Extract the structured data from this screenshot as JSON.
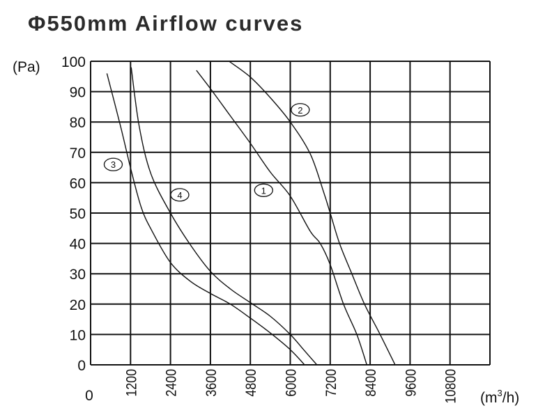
{
  "chart_data": {
    "type": "line",
    "title": "Φ550mm Airflow curves",
    "xlabel": "(m³/h)",
    "xlabel_base": "(m",
    "xlabel_sup": "3",
    "xlabel_tail": "/h)",
    "ylabel": "(Pa)",
    "xlim": [
      0,
      12000
    ],
    "ylim": [
      0,
      100
    ],
    "grid": true,
    "x_ticks": [
      0,
      1200,
      2400,
      3600,
      4800,
      6000,
      7200,
      8400,
      9600,
      10800
    ],
    "x_tick_labels": [
      "0",
      "1200",
      "2400",
      "3600",
      "4800",
      "6000",
      "7200",
      "8400",
      "9600",
      "10800"
    ],
    "y_ticks": [
      0,
      10,
      20,
      30,
      40,
      50,
      60,
      70,
      80,
      90,
      100
    ],
    "y_tick_labels": [
      "0",
      "10",
      "20",
      "30",
      "40",
      "50",
      "60",
      "70",
      "80",
      "90",
      "100"
    ],
    "line_color": "#111111",
    "series": [
      {
        "name": "1",
        "label_at": [
          5200,
          57.5
        ],
        "points": [
          [
            3180,
            97
          ],
          [
            3600,
            91
          ],
          [
            4200,
            82
          ],
          [
            4800,
            73
          ],
          [
            5400,
            63.5
          ],
          [
            6000,
            55.6
          ],
          [
            6600,
            44
          ],
          [
            6900,
            40
          ],
          [
            7200,
            33
          ],
          [
            7600,
            20
          ],
          [
            8000,
            10
          ],
          [
            8300,
            0
          ]
        ]
      },
      {
        "name": "2",
        "label_at": [
          6300,
          84
        ],
        "points": [
          [
            4160,
            100
          ],
          [
            4800,
            94.8
          ],
          [
            5400,
            88
          ],
          [
            6000,
            80
          ],
          [
            6600,
            69.5
          ],
          [
            7000,
            57
          ],
          [
            7200,
            50
          ],
          [
            7480,
            40
          ],
          [
            7850,
            30
          ],
          [
            8230,
            20
          ],
          [
            8700,
            10
          ],
          [
            9150,
            0
          ]
        ]
      },
      {
        "name": "3",
        "label_at": [
          680,
          66
        ],
        "points": [
          [
            490,
            96
          ],
          [
            900,
            78.6
          ],
          [
            1220,
            64
          ],
          [
            1530,
            51.6
          ],
          [
            1850,
            44
          ],
          [
            2400,
            33.7
          ],
          [
            3000,
            27.5
          ],
          [
            3600,
            23.5
          ],
          [
            4200,
            20
          ],
          [
            4800,
            15.4
          ],
          [
            5400,
            10.5
          ],
          [
            6000,
            5
          ],
          [
            6430,
            0
          ]
        ]
      },
      {
        "name": "4",
        "label_at": [
          2680,
          56
        ],
        "points": [
          [
            1220,
            98
          ],
          [
            1460,
            78.6
          ],
          [
            1810,
            63
          ],
          [
            2400,
            50
          ],
          [
            3000,
            39.5
          ],
          [
            3600,
            30.8
          ],
          [
            4200,
            25
          ],
          [
            4800,
            20.5
          ],
          [
            5400,
            16
          ],
          [
            6000,
            10
          ],
          [
            6400,
            5
          ],
          [
            6800,
            0
          ]
        ]
      }
    ]
  }
}
